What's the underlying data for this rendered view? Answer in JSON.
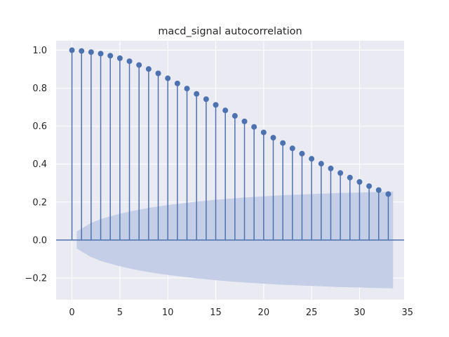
{
  "chart_data": {
    "type": "stem",
    "title": "macd_signal autocorrelation",
    "xlabel": "",
    "ylabel": "",
    "xlim": [
      -1.65,
      34.65
    ],
    "ylim": [
      -0.315,
      1.05
    ],
    "x_ticks": [
      0,
      5,
      10,
      15,
      20,
      25,
      30,
      35
    ],
    "y_ticks": [
      -0.2,
      0.0,
      0.2,
      0.4,
      0.6,
      0.8,
      1.0
    ],
    "y_tick_labels": [
      "−0.2",
      "0.0",
      "0.2",
      "0.4",
      "0.6",
      "0.8",
      "1.0"
    ],
    "grid": true,
    "lags": [
      0,
      1,
      2,
      3,
      4,
      5,
      6,
      7,
      8,
      9,
      10,
      11,
      12,
      13,
      14,
      15,
      16,
      17,
      18,
      19,
      20,
      21,
      22,
      23,
      24,
      25,
      26,
      27,
      28,
      29,
      30,
      31,
      32,
      33
    ],
    "values": [
      1.0,
      0.996,
      0.99,
      0.982,
      0.971,
      0.958,
      0.942,
      0.922,
      0.901,
      0.878,
      0.852,
      0.825,
      0.798,
      0.77,
      0.742,
      0.712,
      0.683,
      0.654,
      0.625,
      0.596,
      0.567,
      0.539,
      0.511,
      0.483,
      0.455,
      0.428,
      0.402,
      0.377,
      0.353,
      0.329,
      0.306,
      0.284,
      0.263,
      0.242
    ],
    "confidence_band": {
      "x": [
        0.5,
        1,
        2,
        3,
        4,
        5,
        6,
        7,
        8,
        9,
        10,
        11,
        12,
        13,
        14,
        15,
        16,
        17,
        18,
        19,
        20,
        21,
        22,
        23,
        24,
        25,
        26,
        27,
        28,
        29,
        30,
        31,
        32,
        33,
        33.5
      ],
      "upper": [
        0.045,
        0.06,
        0.09,
        0.11,
        0.125,
        0.138,
        0.15,
        0.16,
        0.169,
        0.177,
        0.184,
        0.19,
        0.196,
        0.202,
        0.207,
        0.212,
        0.216,
        0.22,
        0.224,
        0.227,
        0.23,
        0.233,
        0.236,
        0.238,
        0.24,
        0.242,
        0.244,
        0.246,
        0.248,
        0.249,
        0.25,
        0.252,
        0.253,
        0.254,
        0.255
      ]
    },
    "colors": {
      "stem": "#4c72b0",
      "band": "#c3cce6",
      "background": "#eaeaf2",
      "grid": "#ffffff"
    }
  }
}
